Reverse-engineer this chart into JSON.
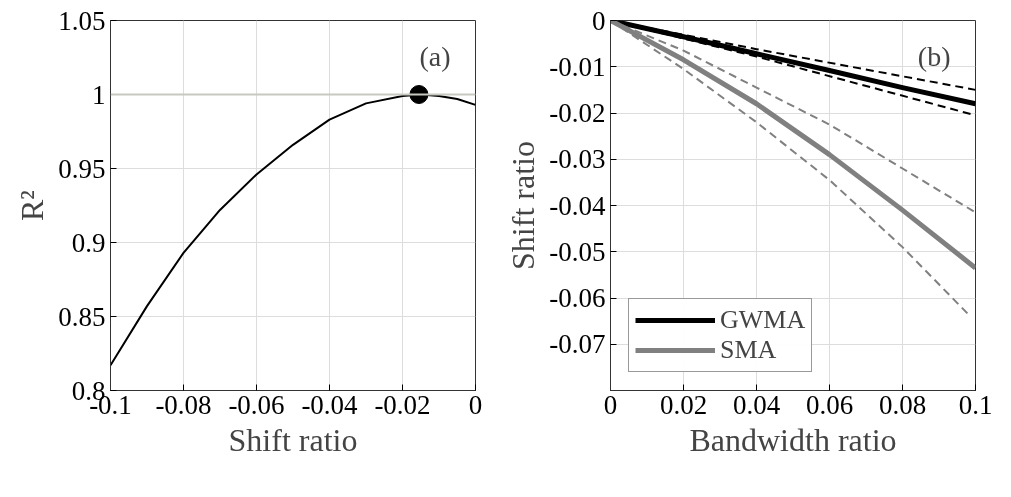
{
  "chart_data": [
    {
      "type": "line",
      "xlabel": "Shift ratio",
      "ylabel": "R²",
      "xlim": [
        -0.1,
        0
      ],
      "ylim": [
        0.8,
        1.05
      ],
      "xticks": [
        -0.1,
        -0.08,
        -0.06,
        -0.04,
        -0.02,
        0
      ],
      "yticks": [
        0.8,
        0.85,
        0.9,
        0.95,
        1,
        1.05
      ],
      "grid": true,
      "legend": false,
      "annotations": [
        "(a)"
      ],
      "ref_lines": [
        {
          "axis": "y",
          "value": 1,
          "color": "#c8c8c0"
        }
      ],
      "series": [
        {
          "color": "#000000",
          "x": [
            -0.1,
            -0.09,
            -0.08,
            -0.07,
            -0.06,
            -0.05,
            -0.04,
            -0.03,
            -0.02,
            -0.015,
            -0.01,
            -0.005,
            0
          ],
          "values": [
            0.817,
            0.857,
            0.893,
            0.922,
            0.946,
            0.966,
            0.983,
            0.994,
            0.999,
            1.0,
            0.999,
            0.997,
            0.993
          ]
        },
        {
          "type": "scatter",
          "marker": "circle",
          "color": "#000000",
          "x": [
            -0.0155
          ],
          "values": [
            1.0
          ]
        }
      ]
    },
    {
      "type": "line",
      "xlabel": "Bandwidth ratio",
      "ylabel": "Shift ratio",
      "xlim": [
        0,
        0.1
      ],
      "ylim": [
        -0.08,
        0
      ],
      "xticks": [
        0,
        0.02,
        0.04,
        0.06,
        0.08,
        0.1
      ],
      "yticks": [
        -0.07,
        -0.06,
        -0.05,
        -0.04,
        -0.03,
        -0.02,
        -0.01,
        0
      ],
      "grid": true,
      "legend": "bottom left",
      "annotations": [
        "(b)"
      ],
      "series": [
        {
          "name": "GWMA",
          "color": "#000000",
          "x": [
            0,
            0.02,
            0.04,
            0.06,
            0.08,
            0.1
          ],
          "values": [
            0,
            -0.0035,
            -0.0072,
            -0.0108,
            -0.0145,
            -0.018
          ]
        },
        {
          "color": "#000000",
          "line_style": "dashed",
          "x": [
            0,
            0.04,
            0.1
          ],
          "values": [
            0,
            -0.0062,
            -0.015
          ]
        },
        {
          "color": "#000000",
          "line_style": "dashed",
          "x": [
            0,
            0.04,
            0.1
          ],
          "values": [
            0,
            -0.0078,
            -0.0205
          ]
        },
        {
          "name": "SMA",
          "color": "#808080",
          "x": [
            0,
            0.02,
            0.04,
            0.06,
            0.08,
            0.1
          ],
          "values": [
            0,
            -0.0085,
            -0.018,
            -0.029,
            -0.041,
            -0.0535
          ]
        },
        {
          "color": "#808080",
          "line_style": "dashed",
          "x": [
            0,
            0.02,
            0.04,
            0.06,
            0.08,
            0.1
          ],
          "values": [
            0,
            -0.0065,
            -0.0145,
            -0.0225,
            -0.032,
            -0.0415
          ]
        },
        {
          "color": "#808080",
          "line_style": "dashed",
          "x": [
            0,
            0.02,
            0.04,
            0.06,
            0.08,
            0.098
          ],
          "values": [
            0,
            -0.0105,
            -0.022,
            -0.0345,
            -0.049,
            -0.0635
          ]
        }
      ]
    }
  ]
}
